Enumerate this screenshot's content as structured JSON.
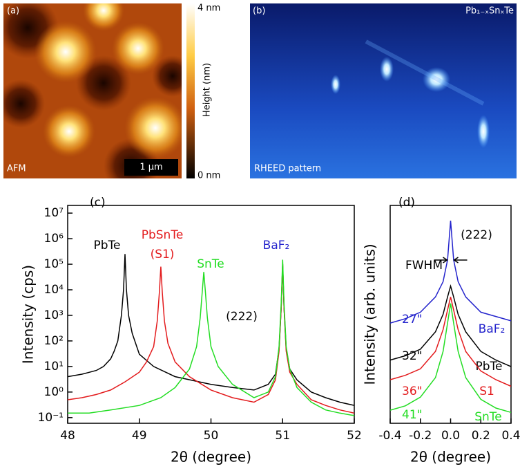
{
  "panels": {
    "a": {
      "label": "(a)",
      "caption": "AFM",
      "scale_bar": "1 μm",
      "colorbar_max": "4 nm",
      "colorbar_min": "0 nm",
      "colorbar_title": "Height (nm)"
    },
    "b": {
      "label": "(b)",
      "material": "Pb₁₋ₓSnₓTe",
      "caption": "RHEED pattern"
    }
  },
  "chart_data": [
    {
      "type": "line",
      "panel_label": "(c)",
      "xlabel": "2θ (degree)",
      "ylabel": "Intensity (cps)",
      "xlim": [
        48,
        52
      ],
      "xticks": [
        48,
        49,
        50,
        51,
        52
      ],
      "ylim": [
        0.06,
        20000000
      ],
      "log_y": true,
      "yticks": [
        {
          "value": 0.1,
          "label": "10⁻¹"
        },
        {
          "value": 1,
          "label": "10⁰"
        },
        {
          "value": 10,
          "label": "10¹"
        },
        {
          "value": 100,
          "label": "10²"
        },
        {
          "value": 1000,
          "label": "10³"
        },
        {
          "value": 10000,
          "label": "10⁴"
        },
        {
          "value": 100000,
          "label": "10⁵"
        },
        {
          "value": 1000000,
          "label": "10⁶"
        },
        {
          "value": 10000000,
          "label": "10⁷"
        }
      ],
      "series": [
        {
          "name": "PbTe",
          "color": "#000000",
          "x": [
            48,
            48.2,
            48.4,
            48.5,
            48.6,
            48.65,
            48.7,
            48.75,
            48.78,
            48.8,
            48.82,
            48.85,
            48.9,
            49,
            49.2,
            49.5,
            50,
            50.3,
            50.6,
            50.8,
            50.9,
            50.95,
            50.98,
            51,
            51.02,
            51.05,
            51.1,
            51.2,
            51.4,
            51.6,
            51.8,
            52
          ],
          "values": [
            4,
            5,
            7,
            10,
            20,
            40,
            100,
            1000,
            10000,
            250000,
            10000,
            1000,
            200,
            30,
            10,
            4,
            2,
            1.5,
            1.2,
            2,
            5,
            50,
            2000,
            100000,
            2000,
            50,
            8,
            3,
            1,
            0.6,
            0.4,
            0.3
          ]
        },
        {
          "name": "PbSnTe",
          "color": "#e31a1c",
          "x": [
            48,
            48.2,
            48.4,
            48.6,
            48.8,
            49,
            49.1,
            49.2,
            49.25,
            49.28,
            49.3,
            49.32,
            49.35,
            49.4,
            49.5,
            49.7,
            50,
            50.3,
            50.6,
            50.8,
            50.9,
            50.95,
            50.98,
            51,
            51.02,
            51.05,
            51.1,
            51.2,
            51.4,
            51.6,
            51.8,
            52
          ],
          "values": [
            0.5,
            0.6,
            0.8,
            1.2,
            2.5,
            6,
            15,
            60,
            600,
            8000,
            80000,
            8000,
            600,
            80,
            15,
            4,
            1.2,
            0.6,
            0.4,
            0.8,
            3,
            40,
            2000,
            100000,
            2000,
            40,
            6,
            2,
            0.5,
            0.3,
            0.2,
            0.15
          ]
        },
        {
          "name": "SnTe",
          "color": "#22dd22",
          "x": [
            48,
            48.3,
            48.6,
            49,
            49.3,
            49.5,
            49.7,
            49.8,
            49.85,
            49.88,
            49.9,
            49.92,
            49.95,
            50,
            50.1,
            50.3,
            50.6,
            50.8,
            50.9,
            50.95,
            50.98,
            51,
            51.02,
            51.05,
            51.1,
            51.2,
            51.4,
            51.6,
            51.8,
            52
          ],
          "values": [
            0.15,
            0.15,
            0.2,
            0.3,
            0.6,
            1.5,
            8,
            60,
            800,
            10000,
            50000,
            10000,
            800,
            60,
            10,
            2,
            0.6,
            1,
            4,
            60,
            3000,
            150000,
            3000,
            60,
            8,
            1.5,
            0.4,
            0.2,
            0.15,
            0.12
          ]
        }
      ],
      "annotations": [
        {
          "text": "(S1)",
          "color": "#e31a1c"
        },
        {
          "text": "BaF₂",
          "color": "#2222cc"
        },
        {
          "text": "(222)",
          "color": "#000000"
        }
      ]
    },
    {
      "type": "line",
      "panel_label": "(d)",
      "xlabel": "2θ (degree)",
      "ylabel": "Intensity (arb. units)",
      "xlim": [
        -0.4,
        0.4
      ],
      "xticks": [
        -0.4,
        -0.2,
        {
          "value": 0,
          "label": "0.0"
        },
        0.2,
        0.4
      ],
      "ylim": [
        0,
        10
      ],
      "log_y": false,
      "series": [
        {
          "name": "BaF₂",
          "color": "#2222cc",
          "fwhm_label": "27\"",
          "x": [
            -0.4,
            -0.3,
            -0.2,
            -0.1,
            -0.05,
            -0.02,
            0,
            0.02,
            0.05,
            0.1,
            0.2,
            0.3,
            0.4
          ],
          "values": [
            4.6,
            4.8,
            5.1,
            5.8,
            6.5,
            7.5,
            9.3,
            7.5,
            6.5,
            5.8,
            5.1,
            4.9,
            4.7
          ]
        },
        {
          "name": "PbTe",
          "color": "#000000",
          "fwhm_label": "32\"",
          "x": [
            -0.4,
            -0.3,
            -0.2,
            -0.1,
            -0.05,
            -0.02,
            0,
            0.02,
            0.05,
            0.1,
            0.2,
            0.3,
            0.4
          ],
          "values": [
            2.9,
            3.1,
            3.4,
            4.2,
            5.0,
            5.8,
            6.3,
            5.8,
            5.0,
            4.2,
            3.3,
            2.9,
            2.6
          ]
        },
        {
          "name": "S1",
          "color": "#e31a1c",
          "fwhm_label": "36\"",
          "x": [
            -0.4,
            -0.3,
            -0.2,
            -0.1,
            -0.05,
            -0.02,
            0,
            0.02,
            0.05,
            0.1,
            0.2,
            0.3,
            0.4
          ],
          "values": [
            2.0,
            2.2,
            2.5,
            3.3,
            4.3,
            5.2,
            5.8,
            5.2,
            4.3,
            3.3,
            2.4,
            2.0,
            1.7
          ]
        },
        {
          "name": "SnTe",
          "color": "#22dd22",
          "fwhm_label": "41\"",
          "x": [
            -0.4,
            -0.3,
            -0.2,
            -0.1,
            -0.05,
            -0.02,
            0,
            0.02,
            0.05,
            0.1,
            0.2,
            0.3,
            0.4
          ],
          "values": [
            0.6,
            0.8,
            1.2,
            2.1,
            3.3,
            4.6,
            5.5,
            4.6,
            3.3,
            2.1,
            1.1,
            0.7,
            0.5
          ]
        }
      ],
      "annotations": [
        {
          "text": "(222)",
          "color": "#000000"
        },
        {
          "text": "FWHM",
          "color": "#000000"
        }
      ]
    }
  ]
}
